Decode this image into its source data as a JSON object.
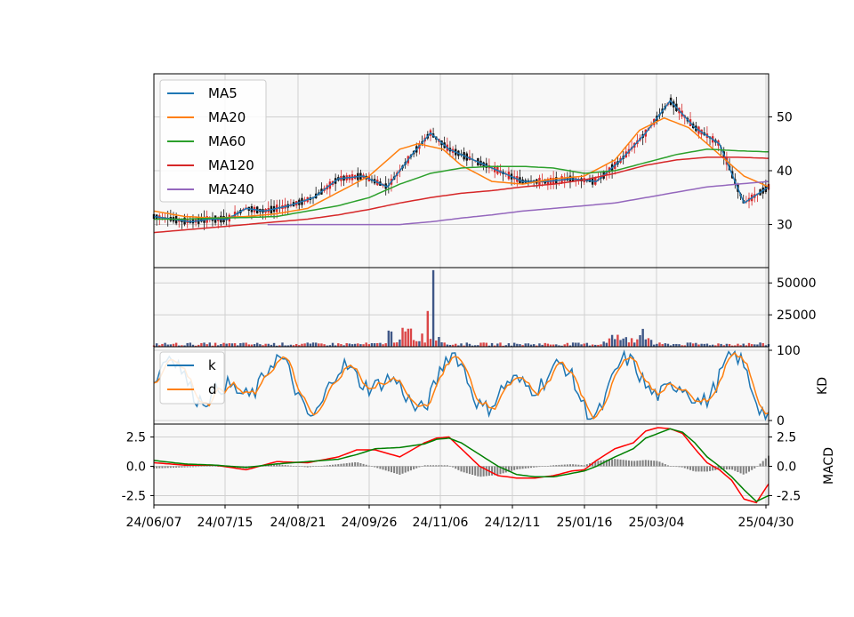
{
  "chart_data": {
    "type": "line",
    "x_tick_labels": [
      "24/06/07",
      "24/07/15",
      "24/08/21",
      "24/09/26",
      "24/11/06",
      "24/12/11",
      "25/01/16",
      "25/03/04",
      "25/04/30"
    ],
    "price_panel": {
      "type": "candlestick",
      "y_ticks": [
        "30",
        "40",
        "50"
      ],
      "ylim": [
        22,
        58
      ],
      "grid": true,
      "legend_position": "upper-left",
      "legend": [
        "MA5",
        "MA20",
        "MA60",
        "MA120",
        "MA240"
      ],
      "colors": {
        "MA5": "#1f77b4",
        "MA20": "#ff7f0e",
        "MA60": "#2ca02c",
        "MA120": "#d62728",
        "MA240": "#9467bd"
      },
      "series": [
        {
          "name": "MA5",
          "x": [
            0,
            3,
            6,
            9,
            12,
            15,
            18,
            22,
            26,
            30,
            34,
            38,
            42,
            45,
            48,
            52,
            56,
            60,
            64,
            68,
            72,
            76,
            80,
            84,
            88,
            92,
            96,
            100
          ],
          "y": [
            31.5,
            31,
            30.5,
            31,
            31,
            33,
            32.5,
            33.5,
            35,
            38.5,
            39,
            37,
            43,
            47,
            44,
            42,
            40,
            38,
            38,
            38.5,
            38,
            42,
            47,
            53,
            48,
            45,
            34,
            37
          ]
        },
        {
          "name": "MA20",
          "x": [
            0,
            5,
            10,
            15,
            20,
            25,
            30,
            35,
            40,
            43,
            47,
            50,
            55,
            60,
            65,
            70,
            75,
            79,
            83,
            87,
            92,
            96,
            100
          ],
          "y": [
            32.5,
            31.5,
            31.2,
            31.5,
            32,
            33,
            36,
            39,
            44,
            45,
            44,
            41,
            38,
            37.5,
            38.5,
            39,
            42,
            47.5,
            49.8,
            48,
            43,
            39,
            37
          ]
        },
        {
          "name": "MA60",
          "x": [
            0,
            5,
            10,
            15,
            20,
            25,
            30,
            35,
            40,
            45,
            50,
            55,
            60,
            65,
            70,
            75,
            80,
            85,
            90,
            95,
            100
          ],
          "y": [
            31,
            31,
            31.2,
            31.3,
            31.5,
            32.5,
            33.5,
            35,
            37.5,
            39.5,
            40.5,
            40.8,
            40.8,
            40.5,
            39.5,
            40,
            41.5,
            43,
            44,
            43.7,
            43.5
          ]
        },
        {
          "name": "MA120",
          "x": [
            0,
            5,
            10,
            15,
            20,
            25,
            30,
            35,
            40,
            45,
            50,
            55,
            60,
            65,
            70,
            75,
            80,
            85,
            90,
            95,
            100
          ],
          "y": [
            28.5,
            29,
            29.5,
            30,
            30.5,
            31,
            31.8,
            32.8,
            34,
            35,
            35.8,
            36.3,
            37,
            37.5,
            38.3,
            39.5,
            41,
            42,
            42.5,
            42.5,
            42.3
          ]
        },
        {
          "name": "MA240",
          "x": [
            0,
            18,
            26,
            35,
            40,
            45,
            50,
            55,
            60,
            65,
            70,
            75,
            80,
            85,
            90,
            95,
            100
          ],
          "y": [
            null,
            30,
            30,
            30,
            30,
            30.5,
            31.2,
            31.8,
            32.5,
            33,
            33.5,
            34,
            35,
            36,
            37,
            37.5,
            38
          ]
        }
      ]
    },
    "volume_panel": {
      "type": "bar",
      "y_ticks": [
        "25000",
        "50000"
      ],
      "ylim": [
        0,
        62000
      ]
    },
    "kd_panel": {
      "type": "line",
      "ylabel": "KD",
      "y_ticks": [
        "0",
        "100"
      ],
      "ylim": [
        0,
        100
      ],
      "legend": [
        "k",
        "d"
      ],
      "colors": {
        "k": "#1f77b4",
        "d": "#ff7f0e"
      }
    },
    "macd_panel": {
      "type": "line",
      "ylabel": "MACD",
      "y_ticks": [
        "-2.5",
        "0.0",
        "2.5"
      ],
      "ylim": [
        -3.3,
        3.6
      ],
      "colors": {
        "dif": "#ff0000",
        "signal": "#008000",
        "hist": "#808080"
      },
      "series": [
        {
          "name": "",
          "x": [
            0,
            5,
            10,
            15,
            20,
            25,
            30,
            33,
            36,
            40,
            44,
            46,
            48,
            50,
            53,
            56,
            59,
            62,
            65,
            68,
            70,
            72,
            75,
            78,
            80,
            82,
            84,
            86,
            88,
            90,
            92,
            94,
            96,
            98,
            100
          ],
          "y": [
            0.3,
            0.1,
            0.1,
            -0.3,
            0.4,
            0.3,
            0.8,
            1.4,
            1.4,
            0.8,
            2,
            2.4,
            2.5,
            1.5,
            0,
            -0.8,
            -1,
            -1,
            -0.8,
            -0.4,
            -0.3,
            0.5,
            1.5,
            2,
            3,
            3.3,
            3.2,
            2.8,
            1.5,
            0.3,
            -0.3,
            -1.2,
            -2.8,
            -3.1,
            -1.5
          ]
        },
        {
          "name": "",
          "x": [
            0,
            5,
            10,
            15,
            20,
            25,
            30,
            33,
            36,
            40,
            44,
            46,
            48,
            50,
            53,
            56,
            59,
            62,
            65,
            68,
            70,
            72,
            75,
            78,
            80,
            82,
            84,
            86,
            88,
            90,
            92,
            94,
            96,
            98,
            100
          ],
          "y": [
            0.5,
            0.2,
            0.1,
            -0.1,
            0.2,
            0.4,
            0.6,
            1,
            1.5,
            1.6,
            1.9,
            2.3,
            2.4,
            2,
            1,
            0,
            -0.7,
            -0.9,
            -0.9,
            -0.6,
            -0.4,
            0,
            0.8,
            1.5,
            2.4,
            2.8,
            3.2,
            2.9,
            2,
            0.8,
            0,
            -0.9,
            -2,
            -3,
            -2.5
          ]
        }
      ]
    }
  }
}
